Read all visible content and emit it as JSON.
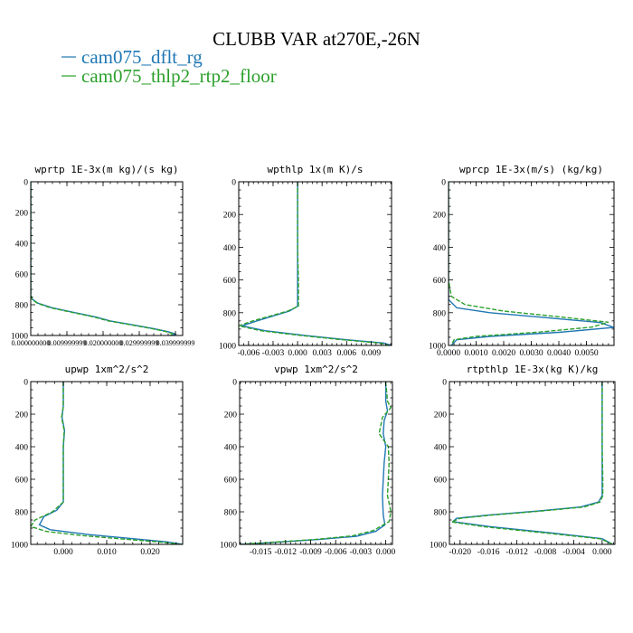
{
  "title": "CLUBB VAR at270E,-26N",
  "legend": [
    {
      "label": "cam075_dflt_rg",
      "color": "#1f77b4",
      "dash": "solid"
    },
    {
      "label": "cam075_thlp2_rtp2_floor",
      "color": "#2ca02c",
      "dash": "dashed"
    }
  ],
  "chart_data": [
    {
      "type": "line",
      "title": "wprtp  1E-3x(m kg)/(s kg)",
      "xlim": [
        0,
        0.042
      ],
      "ylim": [
        1000,
        0
      ],
      "xticks": [
        0,
        0.01,
        0.02,
        0.03,
        0.04
      ],
      "xtick_labels": [
        "0.000000000",
        "0.009999999",
        "0.020000000",
        "0.029999999",
        "0.039999999"
      ],
      "yticks": [
        0,
        200,
        400,
        600,
        800,
        1000
      ],
      "grid": false,
      "series": [
        {
          "color": "#1f77b4",
          "x": [
            0,
            0,
            0,
            0,
            0,
            0,
            0.0005,
            0.002,
            0.006,
            0.012,
            0.018,
            0.022,
            0.028,
            0.034,
            0.038,
            0.04,
            0.039
          ],
          "y": [
            0,
            200,
            400,
            600,
            700,
            740,
            765,
            790,
            820,
            850,
            880,
            905,
            930,
            955,
            975,
            990,
            1000
          ]
        },
        {
          "color": "#2ca02c",
          "dashed": true,
          "x": [
            0,
            0,
            0,
            0,
            0,
            0,
            0.0004,
            0.0018,
            0.0055,
            0.0115,
            0.0175,
            0.0215,
            0.0275,
            0.0335,
            0.0375,
            0.0395,
            0.0385
          ],
          "y": [
            0,
            200,
            400,
            600,
            700,
            740,
            765,
            790,
            820,
            850,
            880,
            905,
            930,
            955,
            975,
            990,
            1000
          ]
        }
      ]
    },
    {
      "type": "line",
      "title": "wpthlp  1x(m K)/s",
      "xlim": [
        -0.0072,
        0.0115
      ],
      "ylim": [
        1000,
        0
      ],
      "xticks": [
        -0.006,
        -0.003,
        0.0,
        0.003,
        0.006,
        0.009
      ],
      "xtick_labels": [
        "-0.006",
        "-0.003",
        "0.000",
        "0.003",
        "0.006",
        "0.009"
      ],
      "yticks": [
        0,
        200,
        400,
        600,
        800,
        1000
      ],
      "grid": false,
      "series": [
        {
          "color": "#1f77b4",
          "x": [
            0,
            0,
            0,
            0,
            0,
            0,
            -0.001,
            -0.003,
            -0.005,
            -0.0068,
            -0.004,
            0.001,
            0.006,
            0.0105,
            0.0115
          ],
          "y": [
            0,
            200,
            400,
            600,
            700,
            760,
            790,
            820,
            850,
            880,
            910,
            940,
            965,
            985,
            1000
          ]
        },
        {
          "color": "#2ca02c",
          "dashed": true,
          "x": [
            0,
            0,
            0,
            0.0001,
            0.0001,
            0.0001,
            -0.0012,
            -0.0033,
            -0.0055,
            -0.0072,
            -0.0045,
            0.0005,
            0.0055,
            0.01,
            0.0112
          ],
          "y": [
            0,
            200,
            400,
            600,
            700,
            760,
            790,
            820,
            850,
            880,
            910,
            940,
            965,
            985,
            1000
          ]
        }
      ]
    },
    {
      "type": "line",
      "title": "wprcp  1E-3x(m/s) (kg/kg)",
      "xlim": [
        0,
        0.006
      ],
      "ylim": [
        1000,
        0
      ],
      "xticks": [
        0,
        0.001,
        0.002,
        0.003,
        0.004,
        0.005
      ],
      "xtick_labels": [
        "0.0000",
        "0.0010",
        "0.0020",
        "0.0030",
        "0.0040",
        "0.0050"
      ],
      "yticks": [
        0,
        200,
        400,
        600,
        800,
        1000
      ],
      "grid": false,
      "series": [
        {
          "color": "#1f77b4",
          "x": [
            0,
            0,
            0,
            0,
            0,
            0.0003,
            0.0015,
            0.0035,
            0.0055,
            0.006,
            0.004,
            0.0015,
            0.0003,
            0.0001
          ],
          "y": [
            0,
            200,
            400,
            600,
            720,
            770,
            800,
            830,
            860,
            890,
            920,
            945,
            965,
            1000
          ]
        },
        {
          "color": "#2ca02c",
          "dashed": true,
          "x": [
            0,
            0,
            0,
            0,
            0.0001,
            0.0006,
            0.002,
            0.004,
            0.0058,
            0.0052,
            0.0033,
            0.001,
            0.0002,
            0.0001
          ],
          "y": [
            0,
            200,
            400,
            600,
            700,
            750,
            790,
            825,
            858,
            888,
            918,
            945,
            965,
            1000
          ]
        }
      ]
    },
    {
      "type": "line",
      "title": "upwp  1xm^2/s^2",
      "xlim": [
        -0.0075,
        0.0275
      ],
      "ylim": [
        1000,
        0
      ],
      "xticks": [
        0,
        0.01,
        0.02
      ],
      "xtick_labels": [
        "0.000",
        "0.010",
        "0.020"
      ],
      "yticks": [
        0,
        200,
        400,
        600,
        800,
        1000
      ],
      "grid": false,
      "series": [
        {
          "color": "#1f77b4",
          "x": [
            0,
            0,
            -0.0003,
            0.0003,
            0,
            0,
            0,
            -0.0015,
            -0.0045,
            -0.0055,
            -0.003,
            0.006,
            0.016,
            0.024,
            0.0275
          ],
          "y": [
            0,
            150,
            220,
            300,
            400,
            600,
            740,
            790,
            830,
            880,
            910,
            940,
            965,
            985,
            1000
          ]
        },
        {
          "color": "#2ca02c",
          "dashed": true,
          "x": [
            0,
            0,
            -0.0004,
            0.0002,
            0,
            0,
            0,
            -0.0025,
            -0.0065,
            -0.0075,
            -0.004,
            0.004,
            0.014,
            0.023,
            0.027
          ],
          "y": [
            0,
            150,
            220,
            300,
            400,
            600,
            740,
            800,
            850,
            890,
            920,
            945,
            968,
            987,
            1000
          ]
        }
      ]
    },
    {
      "type": "line",
      "title": "vpwp  1xm^2/s^2",
      "xlim": [
        -0.0175,
        0.0008
      ],
      "ylim": [
        1000,
        0
      ],
      "xticks": [
        -0.015,
        -0.012,
        -0.009,
        -0.006,
        -0.003,
        0.0
      ],
      "xtick_labels": [
        "-0.015",
        "-0.012",
        "-0.009",
        "-0.006",
        "-0.003",
        "0.000"
      ],
      "yticks": [
        0,
        200,
        400,
        600,
        800,
        1000
      ],
      "grid": false,
      "series": [
        {
          "color": "#1f77b4",
          "x": [
            0,
            0,
            0.0002,
            -0.0002,
            -0.0003,
            0,
            -0.0002,
            -0.0004,
            -0.0003,
            -0.0001,
            -0.0012,
            -0.0035,
            -0.008,
            -0.014,
            -0.0175
          ],
          "y": [
            0,
            120,
            180,
            240,
            320,
            400,
            500,
            700,
            820,
            880,
            920,
            950,
            970,
            990,
            1000
          ]
        },
        {
          "color": "#2ca02c",
          "dashed": true,
          "x": [
            0,
            0.0002,
            0.0006,
            -0.0004,
            -0.0008,
            0.0003,
            0.0004,
            0.0002,
            0.0006,
            0.0004,
            -0.0015,
            -0.004,
            -0.0085,
            -0.0145,
            -0.0175
          ],
          "y": [
            0,
            120,
            160,
            220,
            320,
            400,
            500,
            700,
            800,
            860,
            915,
            948,
            970,
            990,
            1000
          ]
        }
      ]
    },
    {
      "type": "line",
      "title": "rtpthlp  1E-3x(kg K)/kg",
      "xlim": [
        -0.0215,
        0.0018
      ],
      "ylim": [
        1000,
        0
      ],
      "xticks": [
        -0.02,
        -0.016,
        -0.012,
        -0.008,
        -0.004,
        0.0
      ],
      "xtick_labels": [
        "-0.020",
        "-0.016",
        "-0.012",
        "-0.008",
        "-0.004",
        "0.000"
      ],
      "yticks": [
        0,
        200,
        400,
        600,
        800,
        1000
      ],
      "grid": false,
      "series": [
        {
          "color": "#1f77b4",
          "x": [
            0,
            0,
            0,
            0,
            0,
            -0.0005,
            -0.003,
            -0.009,
            -0.016,
            -0.0205,
            -0.021,
            -0.016,
            -0.007,
            0.0,
            0.0015
          ],
          "y": [
            0,
            200,
            400,
            600,
            700,
            740,
            770,
            795,
            820,
            840,
            860,
            890,
            930,
            965,
            1000
          ]
        },
        {
          "color": "#2ca02c",
          "dashed": true,
          "x": [
            0,
            0,
            0,
            0.0001,
            0.0001,
            -0.0003,
            -0.0025,
            -0.0085,
            -0.0155,
            -0.02,
            -0.0212,
            -0.0165,
            -0.0075,
            -0.0002,
            0.0015
          ],
          "y": [
            0,
            200,
            400,
            600,
            700,
            740,
            770,
            795,
            820,
            840,
            862,
            892,
            932,
            966,
            1000
          ]
        }
      ]
    }
  ]
}
